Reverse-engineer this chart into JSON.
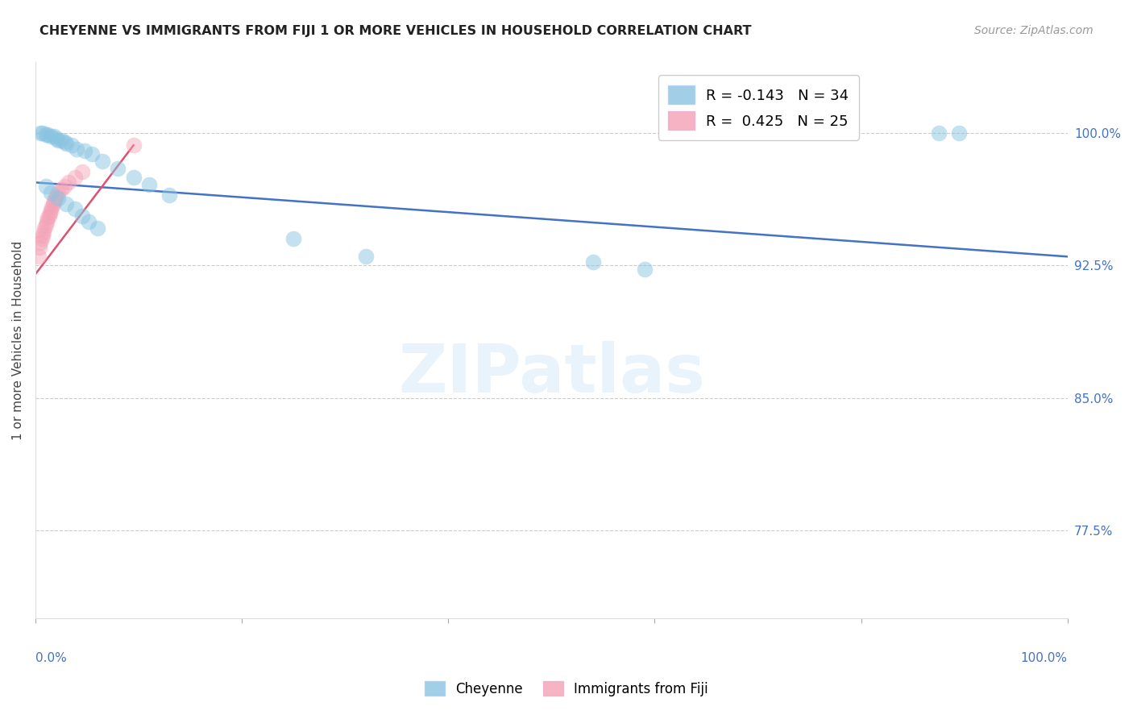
{
  "title": "CHEYENNE VS IMMIGRANTS FROM FIJI 1 OR MORE VEHICLES IN HOUSEHOLD CORRELATION CHART",
  "source": "Source: ZipAtlas.com",
  "ylabel": "1 or more Vehicles in Household",
  "ytick_labels": [
    "77.5%",
    "85.0%",
    "92.5%",
    "100.0%"
  ],
  "ytick_values": [
    0.775,
    0.85,
    0.925,
    1.0
  ],
  "xlim": [
    0.0,
    1.0
  ],
  "ylim": [
    0.725,
    1.04
  ],
  "legend_blue_r": "-0.143",
  "legend_blue_n": "34",
  "legend_pink_r": "0.425",
  "legend_pink_n": "25",
  "cheyenne_color": "#89c4e1",
  "fiji_color": "#f4a0b5",
  "trendline_blue": "#4472c4",
  "trendline_pink": "#e05070",
  "watermark_text": "ZIPatlas",
  "cheyenne_x": [
    0.005,
    0.007,
    0.01,
    0.012,
    0.015,
    0.018,
    0.02,
    0.022,
    0.025,
    0.028,
    0.03,
    0.035,
    0.04,
    0.048,
    0.055,
    0.065,
    0.08,
    0.095,
    0.11,
    0.13,
    0.25,
    0.32,
    0.54,
    0.59,
    0.875,
    0.895,
    0.01,
    0.015,
    0.022,
    0.03,
    0.038,
    0.045,
    0.052,
    0.06
  ],
  "cheyenne_y": [
    1.0,
    1.0,
    0.999,
    0.999,
    0.998,
    0.998,
    0.997,
    0.996,
    0.996,
    0.995,
    0.994,
    0.993,
    0.991,
    0.99,
    0.988,
    0.984,
    0.98,
    0.975,
    0.971,
    0.965,
    0.94,
    0.93,
    0.927,
    0.923,
    1.0,
    1.0,
    0.97,
    0.966,
    0.963,
    0.96,
    0.957,
    0.953,
    0.95,
    0.946
  ],
  "fiji_x": [
    0.003,
    0.004,
    0.005,
    0.006,
    0.007,
    0.008,
    0.009,
    0.01,
    0.011,
    0.012,
    0.013,
    0.014,
    0.015,
    0.016,
    0.017,
    0.018,
    0.019,
    0.02,
    0.022,
    0.025,
    0.028,
    0.032,
    0.038,
    0.045,
    0.095
  ],
  "fiji_y": [
    0.93,
    0.935,
    0.938,
    0.94,
    0.942,
    0.944,
    0.946,
    0.948,
    0.95,
    0.952,
    0.953,
    0.955,
    0.956,
    0.958,
    0.96,
    0.961,
    0.963,
    0.964,
    0.966,
    0.968,
    0.97,
    0.972,
    0.975,
    0.978,
    0.993
  ],
  "blue_trendline_x": [
    0.0,
    1.0
  ],
  "blue_trendline_y": [
    0.972,
    0.93
  ],
  "pink_trendline_x": [
    0.0,
    0.095
  ],
  "pink_trendline_y": [
    0.92,
    0.993
  ]
}
